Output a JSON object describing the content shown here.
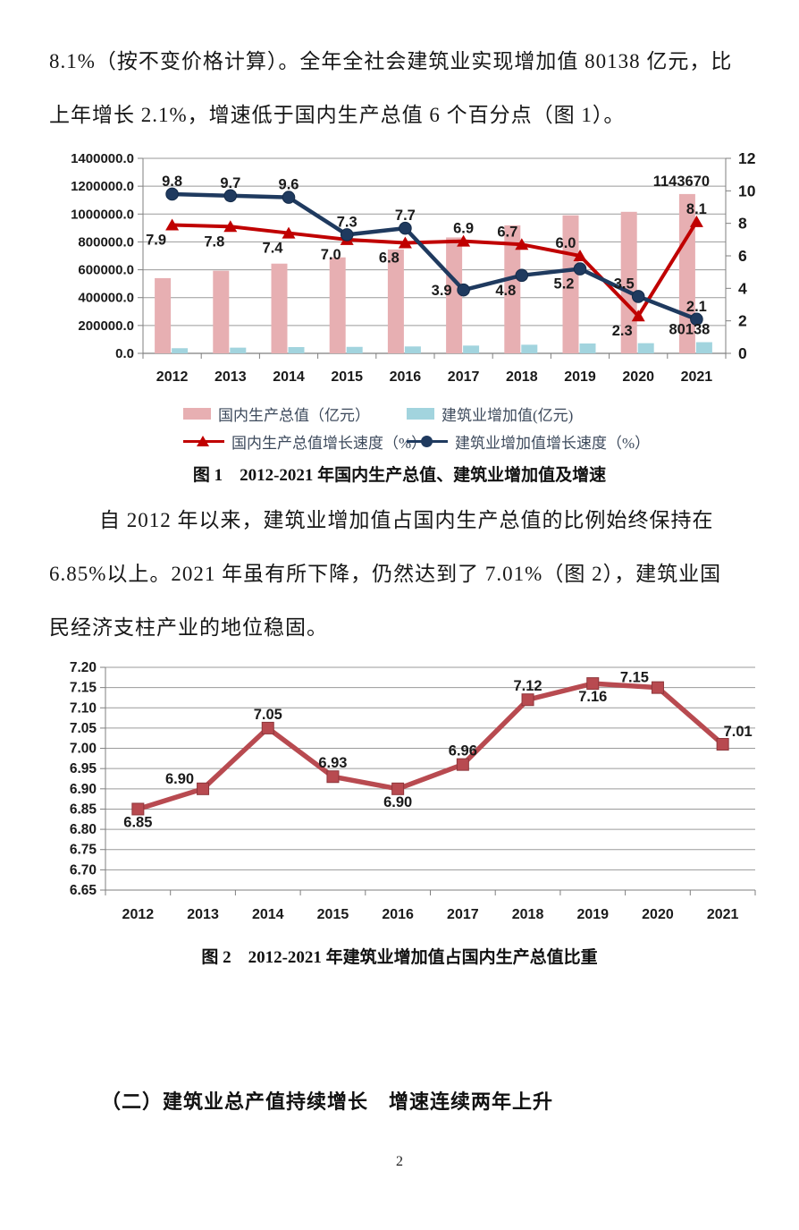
{
  "page": {
    "number": "2"
  },
  "para1": {
    "lines": [
      "8.1%（按不变价格计算）。全年全社会建筑业实现增加值 80138 亿元，比",
      "上年增长 2.1%，增速低于国内生产总值 6 个百分点（图 1）。"
    ]
  },
  "para2": {
    "lines": [
      "自 2012 年以来，建筑业增加值占国内生产总值的比例始终保持在",
      "6.85%以上。2021 年虽有所下降，仍然达到了 7.01%（图 2），建筑业国",
      "民经济支柱产业的地位稳固。"
    ]
  },
  "figure1": {
    "caption": "图 1　2012-2021 年国内生产总值、建筑业增加值及增速"
  },
  "figure2": {
    "caption": "图 2　2012-2021 年建筑业增加值占国内生产总值比重"
  },
  "heading2": "（二）建筑业总产值持续增长　增速连续两年上升",
  "chart_data": [
    {
      "type": "bar",
      "subtype": "bar+line combo, dual axis",
      "categories": [
        "2012",
        "2013",
        "2014",
        "2015",
        "2016",
        "2017",
        "2018",
        "2019",
        "2020",
        "2021"
      ],
      "series": [
        {
          "name": "国内生产总值（亿元）",
          "kind": "bar",
          "axis": "left",
          "color": "#e7afb2",
          "values": [
            540000,
            593000,
            644000,
            689000,
            746000,
            832000,
            919000,
            991000,
            1016000,
            1143670
          ]
        },
        {
          "name": "建筑业增加值(亿元)",
          "kind": "bar",
          "axis": "left",
          "color": "#a2d4de",
          "values": [
            36900,
            40900,
            44900,
            46500,
            49500,
            55700,
            61800,
            70900,
            73000,
            80138
          ]
        },
        {
          "name": "国内生产总值增长速度（%）",
          "kind": "line",
          "marker": "triangle",
          "axis": "right",
          "color": "#c00000",
          "values": [
            7.9,
            7.8,
            7.4,
            7.0,
            6.8,
            6.9,
            6.7,
            6.0,
            2.3,
            8.1
          ],
          "label_side": [
            "below-left",
            "below-left",
            "below-left",
            "below-left",
            "below-left",
            "above",
            "above-left",
            "above-left",
            "below-left",
            "above"
          ]
        },
        {
          "name": "建筑业增加值增长速度（%）",
          "kind": "line",
          "marker": "circle",
          "axis": "right",
          "color": "#1f3a5f",
          "values": [
            9.8,
            9.7,
            9.6,
            7.3,
            7.7,
            3.9,
            4.8,
            5.2,
            3.5,
            2.1
          ],
          "label_side": [
            "above",
            "above",
            "above",
            "above",
            "above",
            "left",
            "below-left",
            "below-left",
            "above-left",
            "above"
          ]
        }
      ],
      "left_axis": {
        "min": 0,
        "max": 1400000,
        "step": 200000,
        "ticks": [
          "1400000.0",
          "1200000.0",
          "1000000.0",
          "800000.0",
          "600000.0",
          "400000.0",
          "200000.0",
          "0.0"
        ]
      },
      "right_axis": {
        "min": 0,
        "max": 12,
        "step": 2,
        "ticks": [
          "12",
          "10",
          "8",
          "6",
          "4",
          "2",
          "0"
        ]
      },
      "annotations": [
        {
          "text": "1143670",
          "series": 0,
          "index": 9
        },
        {
          "text": "80138",
          "series": 1,
          "index": 9
        }
      ],
      "legend_position": "bottom",
      "grid": true
    },
    {
      "type": "line",
      "categories": [
        "2012",
        "2013",
        "2014",
        "2015",
        "2016",
        "2017",
        "2018",
        "2019",
        "2020",
        "2021"
      ],
      "values": [
        6.85,
        6.9,
        7.05,
        6.93,
        6.9,
        6.96,
        7.12,
        7.16,
        7.15,
        7.01
      ],
      "color": "#b84a50",
      "marker": "square",
      "ylim": [
        6.65,
        7.2
      ],
      "ystep": 0.05,
      "yticks": [
        "7.20",
        "7.15",
        "7.10",
        "7.05",
        "7.00",
        "6.95",
        "6.90",
        "6.85",
        "6.80",
        "6.75",
        "6.70",
        "6.65"
      ],
      "label_side": [
        "below",
        "above-left",
        "above",
        "above",
        "below",
        "above",
        "above",
        "below",
        "above-left",
        "above-right"
      ],
      "grid": true,
      "legend_position": "none"
    }
  ]
}
